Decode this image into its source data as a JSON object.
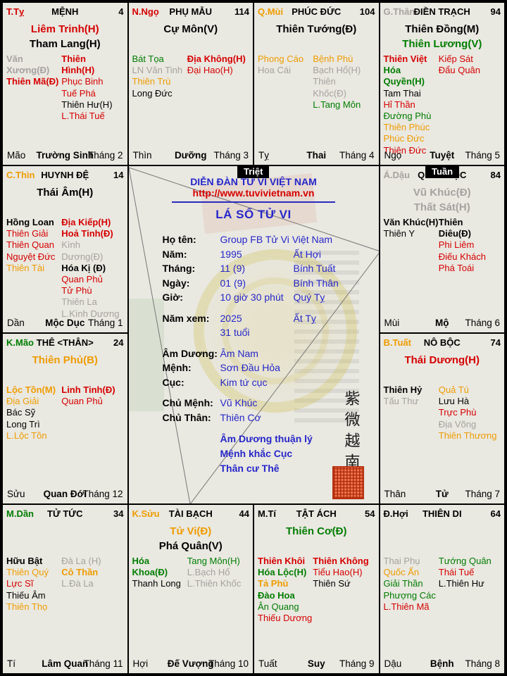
{
  "colors": {
    "k": "#000000",
    "r": "#d60000",
    "o": "#ef9c00",
    "g": "#007d00",
    "y": "#a6a2a0",
    "b": "#2626c9"
  },
  "badges": {
    "triet": "Triệt",
    "tuan": "Tuần"
  },
  "center": {
    "forum_title": "DIỄN ĐÀN TỬ VI VIỆT NAM",
    "url": "http://www.tuvivietnam.vn",
    "chart_title": "LÁ SỐ TỬ VI",
    "fields": [
      {
        "label": "Họ tên:",
        "value": "Group FB Tử Vi Việt Nam",
        "extra": ""
      },
      {
        "label": "Năm:",
        "value": "1995",
        "extra": "Ất Hợi"
      },
      {
        "label": "Tháng:",
        "value": "11 (9)",
        "extra": "Bính Tuất"
      },
      {
        "label": "Ngày:",
        "value": "01 (9)",
        "extra": "Bính Thân"
      },
      {
        "label": "Giờ:",
        "value": "10 giờ 30 phút",
        "extra": "Quý Tỵ"
      },
      {
        "label": "Năm xem:",
        "value": "2025",
        "extra": "Ất Tỵ",
        "gap": 1
      },
      {
        "label": "",
        "value": "31 tuổi",
        "extra": ""
      },
      {
        "label": "Âm Dương:",
        "value": "Âm Nam",
        "extra": "",
        "gap": 1
      },
      {
        "label": "Mệnh:",
        "value": "Sơn Đầu Hỏa",
        "extra": ""
      },
      {
        "label": "Cục:",
        "value": "Kim tứ cục",
        "extra": ""
      },
      {
        "label": "Chủ Mệnh:",
        "value": "Vũ Khúc",
        "extra": "",
        "gap": 1
      },
      {
        "label": "Chủ Thân:",
        "value": "Thiên Cơ",
        "extra": ""
      }
    ],
    "notes": [
      "Âm Dương thuận lý",
      "Mệnh khắc Cục",
      "Thân cư Thê"
    ],
    "seal_text": "紫微越南"
  },
  "palaces": [
    {
      "key": "ty",
      "chi": [
        "T.Tỵ",
        "r"
      ],
      "name": "MỆNH",
      "num": "4",
      "mains": [
        [
          "Liêm Trinh(H)",
          "r"
        ],
        [
          "Tham Lang(H)",
          "k"
        ]
      ],
      "left": [
        [
          "Văn Xương(Đ)",
          "y",
          1
        ],
        [
          "Thiên Mã(Đ)",
          "r",
          1
        ]
      ],
      "right": [
        [
          "Thiên Hình(H)",
          "r",
          1
        ],
        [
          "Phục Binh",
          "r"
        ],
        [
          "Tuế Phá",
          "r"
        ],
        [
          "Thiên Hư(H)",
          "k"
        ],
        [
          "L.Thái Tuế",
          "r"
        ]
      ],
      "foot": [
        "Mão",
        "Trường Sinh",
        "Tháng 2"
      ]
    },
    {
      "key": "ngo",
      "chi": [
        "N.Ngọ",
        "r"
      ],
      "name": "PHỤ MẪU",
      "num": "114",
      "mains": [
        [
          "Cự Môn(V)",
          "k"
        ]
      ],
      "left": [
        [
          "Bát Tọa",
          "g"
        ],
        [
          "LN Văn Tinh",
          "y"
        ],
        [
          "Thiên Trù",
          "o"
        ],
        [
          "Long Đức",
          "k"
        ]
      ],
      "right": [
        [
          "Địa Không(H)",
          "r",
          1
        ],
        [
          "Đại Hao(H)",
          "r"
        ]
      ],
      "foot": [
        "Thìn",
        "Dưỡng",
        "Tháng 3"
      ]
    },
    {
      "key": "mui",
      "chi": [
        "Q.Mùi",
        "o"
      ],
      "name": "PHÚC ĐỨC",
      "num": "104",
      "mains": [
        [
          "Thiên Tướng(Đ)",
          "k"
        ]
      ],
      "left": [
        [
          "Phong Cáo",
          "o"
        ],
        [
          "Hoa Cái",
          "y"
        ]
      ],
      "right": [
        [
          "Bệnh Phù",
          "o"
        ],
        [
          "Bạch Hổ(H)",
          "y"
        ],
        [
          "Thiên Khốc(Đ)",
          "y"
        ],
        [
          "L.Tang Môn",
          "g"
        ]
      ],
      "foot": [
        "Tỵ",
        "Thai",
        "Tháng 4"
      ]
    },
    {
      "key": "than",
      "chi": [
        "G.Thân",
        "y"
      ],
      "name": "ĐIỀN TRẠCH",
      "num": "94",
      "mains": [
        [
          "Thiên Đồng(M)",
          "k"
        ],
        [
          "Thiên Lương(V)",
          "g"
        ]
      ],
      "left": [
        [
          "Thiên Việt",
          "r",
          1
        ],
        [
          "Hóa Quyền(H)",
          "g",
          1
        ],
        [
          "Tam Thai",
          "k"
        ],
        [
          "Hỉ Thần",
          "r"
        ],
        [
          "Đường Phù",
          "g"
        ],
        [
          "Thiên Phúc",
          "o"
        ],
        [
          "Phúc Đức",
          "o"
        ],
        [
          "Thiên Đức",
          "r"
        ]
      ],
      "right": [
        [
          "Kiếp Sát",
          "r"
        ],
        [
          "Đẩu Quân",
          "r"
        ]
      ],
      "foot": [
        "Ngọ",
        "Tuyệt",
        "Tháng 5"
      ]
    },
    {
      "key": "thin",
      "chi": [
        "C.Thìn",
        "o"
      ],
      "name": "HUYNH ĐỆ",
      "num": "14",
      "mains": [
        [
          "Thái Âm(H)",
          "k"
        ]
      ],
      "left": [
        [
          "Hồng Loan",
          "k",
          1
        ],
        [
          "Thiên Giải",
          "r"
        ],
        [
          "Thiên Quan",
          "r"
        ],
        [
          "Nguyệt Đức",
          "r"
        ],
        [
          "Thiên Tài",
          "o"
        ]
      ],
      "right": [
        [
          "Địa Kiếp(H)",
          "r",
          1
        ],
        [
          "Hoả Tinh(Đ)",
          "r",
          1
        ],
        [
          "Kình Dương(Đ)",
          "y"
        ],
        [
          "Hóa Kị (Đ)",
          "k",
          1
        ],
        [
          "Quan Phủ",
          "r"
        ],
        [
          "Tử Phù",
          "r"
        ],
        [
          "Thiên La",
          "y"
        ],
        [
          "L.Kình Dương",
          "y"
        ]
      ],
      "foot": [
        "Dần",
        "Mộc Dục",
        "Tháng 1"
      ]
    },
    {
      "key": "dau",
      "chi": [
        "Á.Dậu",
        "y"
      ],
      "name": "QUAN LỘC",
      "num": "84",
      "mains": [
        [
          "Vũ Khúc(Đ)",
          "y"
        ],
        [
          "Thất Sát(H)",
          "y"
        ]
      ],
      "left": [
        [
          "Văn Khúc(H)",
          "k",
          1
        ],
        [
          "Thiên Y",
          "k"
        ]
      ],
      "right": [
        [
          "Thiên Diêu(Đ)",
          "k",
          1
        ],
        [
          "Phi Liêm",
          "r"
        ],
        [
          "Điếu Khách",
          "r"
        ],
        [
          "Phá Toái",
          "r"
        ]
      ],
      "foot": [
        "Mùi",
        "Mộ",
        "Tháng 6"
      ]
    },
    {
      "key": "mao",
      "chi": [
        "K.Mão",
        "g"
      ],
      "name": "THÊ <THÂN>",
      "num": "24",
      "mains": [
        [
          "Thiên Phủ(B)",
          "o"
        ]
      ],
      "left": [
        [
          "Lộc Tồn(M)",
          "o",
          1
        ],
        [
          "Địa Giải",
          "o"
        ],
        [
          "Bác Sỹ",
          "k"
        ],
        [
          "Long Trì",
          "k"
        ],
        [
          "L.Lộc Tồn",
          "o"
        ]
      ],
      "right": [
        [
          "Linh Tinh(Đ)",
          "r",
          1
        ],
        [
          "Quan Phủ",
          "r"
        ]
      ],
      "foot": [
        "Sửu",
        "Quan Đới",
        "Tháng 12"
      ]
    },
    {
      "key": "tuat",
      "chi": [
        "B.Tuất",
        "o"
      ],
      "name": "NÔ BỘC",
      "num": "74",
      "mains": [
        [
          "Thái Dương(H)",
          "r"
        ]
      ],
      "left": [
        [
          "Thiên Hỷ",
          "k",
          1
        ],
        [
          "Tấu Thư",
          "y"
        ]
      ],
      "right": [
        [
          "Quả Tú",
          "o"
        ],
        [
          "Lưu Hà",
          "k"
        ],
        [
          "Trực Phù",
          "r"
        ],
        [
          "Địa Võng",
          "y"
        ],
        [
          "Thiên Thương",
          "o"
        ]
      ],
      "foot": [
        "Thân",
        "Tử",
        "Tháng 7"
      ]
    },
    {
      "key": "dan",
      "chi": [
        "M.Dần",
        "g"
      ],
      "name": "TỬ TỨC",
      "num": "34",
      "mains": [],
      "left": [
        [
          "Hữu Bật",
          "k",
          1
        ],
        [
          "Thiên Quý",
          "o"
        ],
        [
          "Lực Sĩ",
          "r"
        ],
        [
          "Thiếu Âm",
          "k"
        ],
        [
          "Thiên Thọ",
          "o"
        ]
      ],
      "right": [
        [
          "Đà La (H)",
          "y"
        ],
        [
          "Cô Thần",
          "o",
          1
        ],
        [
          "L.Đà La",
          "y"
        ]
      ],
      "foot": [
        "Tí",
        "Lâm Quan",
        "Tháng 11"
      ]
    },
    {
      "key": "suu",
      "chi": [
        "K.Sửu",
        "o"
      ],
      "name": "TÀI BẠCH",
      "num": "44",
      "mains": [
        [
          "Tử Vi(Đ)",
          "o"
        ],
        [
          "Phá Quân(V)",
          "k"
        ]
      ],
      "left": [
        [
          "Hóa Khoa(Đ)",
          "g",
          1
        ],
        [
          "Thanh Long",
          "k"
        ]
      ],
      "right": [
        [
          "Tang Môn(H)",
          "g"
        ],
        [
          "L.Bạch Hổ",
          "y"
        ],
        [
          "L.Thiên Khốc",
          "y"
        ]
      ],
      "foot": [
        "Hợi",
        "Đế Vượng",
        "Tháng 10"
      ]
    },
    {
      "key": "ti",
      "chi": [
        "M.Tí",
        "k"
      ],
      "name": "TẬT ÁCH",
      "num": "54",
      "mains": [
        [
          "Thiên Cơ(Đ)",
          "g"
        ]
      ],
      "left": [
        [
          "Thiên Khôi",
          "r",
          1
        ],
        [
          "Hóa Lộc(H)",
          "g",
          1
        ],
        [
          "Tả Phù",
          "o",
          1
        ],
        [
          "Đào Hoa",
          "g",
          1
        ],
        [
          "Ân Quang",
          "g"
        ],
        [
          "Thiếu Dương",
          "r"
        ]
      ],
      "right": [
        [
          "Thiên Không",
          "r",
          1
        ],
        [
          "Tiểu Hao(H)",
          "r"
        ],
        [
          "Thiên Sứ",
          "k"
        ]
      ],
      "foot": [
        "Tuất",
        "Suy",
        "Tháng 9"
      ]
    },
    {
      "key": "hoi",
      "chi": [
        "Đ.Hợi",
        "k"
      ],
      "name": "THIÊN DI",
      "num": "64",
      "mains": [],
      "left": [
        [
          "Thai Phụ",
          "y"
        ],
        [
          "Quốc Ấn",
          "o"
        ],
        [
          "Giải Thần",
          "g"
        ],
        [
          "Phượng Các",
          "g"
        ],
        [
          "L.Thiên Mã",
          "r"
        ]
      ],
      "right": [
        [
          "Tướng Quân",
          "g"
        ],
        [
          "Thái Tuế",
          "r"
        ],
        [
          "L.Thiên Hư",
          "k"
        ]
      ],
      "foot": [
        "Dậu",
        "Bệnh",
        "Tháng 8"
      ]
    }
  ]
}
